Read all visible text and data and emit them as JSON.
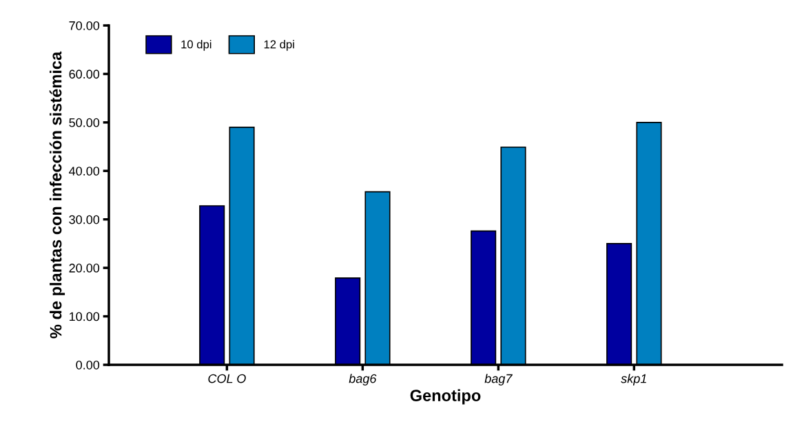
{
  "chart_data": {
    "type": "bar",
    "xlabel": "Genotipo",
    "ylabel": "% de plantas con infección sistémica",
    "categories": [
      "COL O",
      "bag6",
      "bag7",
      "skp1"
    ],
    "series": [
      {
        "name": "10 dpi",
        "color": "#0000a0",
        "values": [
          32.8,
          17.9,
          27.6,
          25.0
        ]
      },
      {
        "name": "12 dpi",
        "color": "#0080c0",
        "values": [
          49.0,
          35.7,
          44.9,
          50.0
        ]
      }
    ],
    "ylim": [
      0,
      70
    ],
    "yticks": [
      {
        "value": 0,
        "label": "0.00"
      },
      {
        "value": 10,
        "label": "10.00"
      },
      {
        "value": 20,
        "label": "20.00"
      },
      {
        "value": 30,
        "label": "30.00"
      },
      {
        "value": 40,
        "label": "40.00"
      },
      {
        "value": 50,
        "label": "50.00"
      },
      {
        "value": 60,
        "label": "60.00"
      },
      {
        "value": 70,
        "label": "70.00"
      }
    ],
    "grid": false,
    "legend": "top left"
  }
}
